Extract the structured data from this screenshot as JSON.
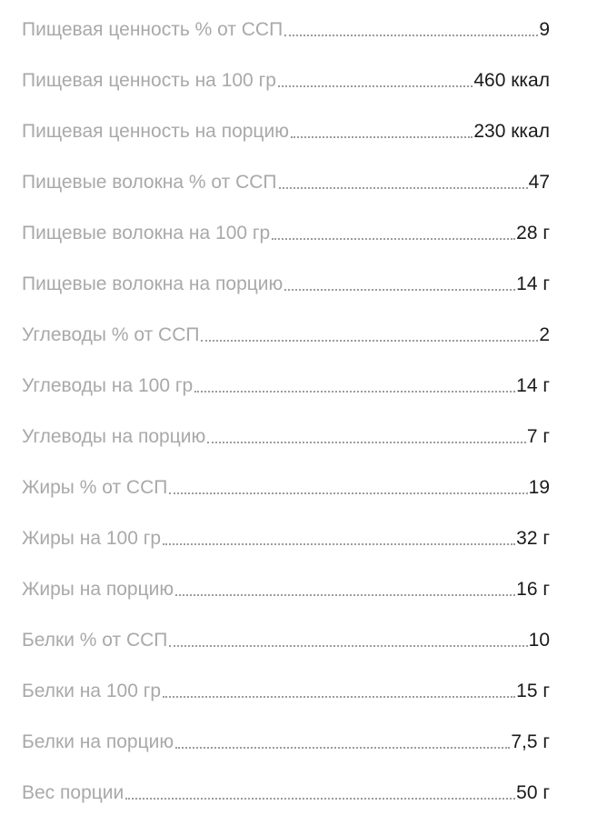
{
  "nutrition_list": {
    "rows": [
      {
        "label": "Пищевая ценность % от ССП",
        "value": "9"
      },
      {
        "label": "Пищевая ценность на 100 гр",
        "value": "460 ккал"
      },
      {
        "label": "Пищевая ценность на порцию",
        "value": "230 ккал"
      },
      {
        "label": "Пищевые волокна % от ССП",
        "value": "47"
      },
      {
        "label": "Пищевые волокна на 100 гр",
        "value": "28 г"
      },
      {
        "label": "Пищевые волокна на порцию",
        "value": "14 г"
      },
      {
        "label": "Углеводы % от ССП",
        "value": "2"
      },
      {
        "label": "Углеводы на 100 гр",
        "value": "14 г"
      },
      {
        "label": "Углеводы на порцию",
        "value": "7 г"
      },
      {
        "label": "Жиры % от ССП",
        "value": "19"
      },
      {
        "label": "Жиры на 100 гр",
        "value": "32 г"
      },
      {
        "label": "Жиры на порцию",
        "value": "16 г"
      },
      {
        "label": "Белки % от ССП",
        "value": "10"
      },
      {
        "label": "Белки на 100 гр",
        "value": "15 г"
      },
      {
        "label": "Белки на порцию",
        "value": "7,5 г"
      },
      {
        "label": "Вес порции",
        "value": "50 г"
      }
    ],
    "colors": {
      "label": "#a9a9a9",
      "value": "#1a1a1a",
      "leader": "#9c9c9c",
      "background": "#ffffff"
    }
  }
}
